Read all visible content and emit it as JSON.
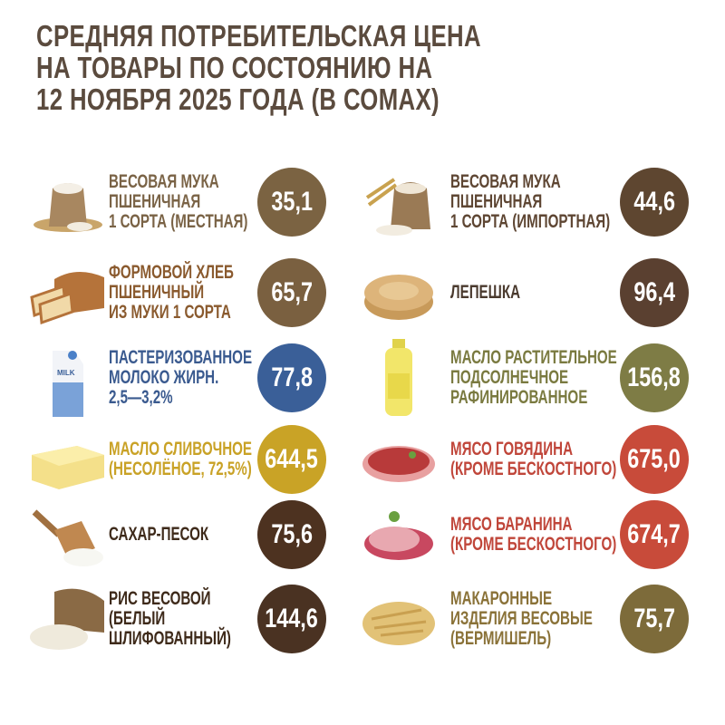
{
  "title": [
    "СРЕДНЯЯ ПОТРЕБИТЕЛЬСКАЯ ЦЕНА",
    "НА ТОВАРЫ ПО СОСТОЯНИЮ НА",
    "12 НОЯБРЯ 2025 ГОДА (В СОМАХ)"
  ],
  "items": [
    {
      "icon": "flour-sack-icon",
      "lines": [
        "ВЕСОВАЯ МУКА",
        "ПШЕНИЧНАЯ",
        "1 СОРТА (МЕСТНАЯ)"
      ],
      "price": "35,1",
      "text_color": "#7a6346",
      "circle_color": "#7b6342"
    },
    {
      "icon": "flour-sack-wheat-icon",
      "lines": [
        "ВЕСОВАЯ МУКА",
        "ПШЕНИЧНАЯ",
        "1 СОРТА (ИМПОРТНАЯ)"
      ],
      "price": "44,6",
      "text_color": "#5e4633",
      "circle_color": "#5e4630"
    },
    {
      "icon": "bread-loaf-icon",
      "lines": [
        "ФОРМОВОЙ ХЛЕБ",
        "ПШЕНИЧНЫЙ",
        "ИЗ МУКИ 1 СОРТА"
      ],
      "price": "65,7",
      "text_color": "#8a5a2e",
      "circle_color": "#7a6040"
    },
    {
      "icon": "flatbread-icon",
      "lines": [
        "ЛЕПЕШКА"
      ],
      "price": "96,4",
      "text_color": "#4a3a2e",
      "circle_color": "#5a4030"
    },
    {
      "icon": "milk-carton-icon",
      "lines": [
        "ПАСТЕРИЗОВАННОЕ",
        "МОЛОКО ЖИРН.",
        "2,5—3,2%"
      ],
      "price": "77,8",
      "text_color": "#3a5a8f",
      "circle_color": "#3a5f98",
      "carton_text": "MILK"
    },
    {
      "icon": "oil-bottle-icon",
      "lines": [
        "МАСЛО РАСТИТЕЛЬНОЕ",
        "ПОДСОЛНЕЧНОЕ",
        "РАФИНИРОВАННОЕ"
      ],
      "price": "156,8",
      "text_color": "#7a7a40",
      "circle_color": "#7e7c45"
    },
    {
      "icon": "butter-icon",
      "lines": [
        "МАСЛО СЛИВОЧНОЕ",
        "(НЕСОЛЁНОЕ, 72,5%)"
      ],
      "price": "644,5",
      "text_color": "#c9a226",
      "circle_color": "#c9a326"
    },
    {
      "icon": "beef-icon",
      "lines": [
        "МЯСО ГОВЯДИНА",
        "(КРОМЕ БЕСКОСТНОГО)"
      ],
      "price": "675,0",
      "text_color": "#c0463a",
      "circle_color": "#c84b3a"
    },
    {
      "icon": "sugar-scoop-icon",
      "lines": [
        "САХАР-ПЕСОК"
      ],
      "price": "75,6",
      "text_color": "#3e2a1a",
      "circle_color": "#4d3220"
    },
    {
      "icon": "mutton-icon",
      "lines": [
        "МЯСО БАРАНИНА",
        "(КРОМЕ БЕСКОСТНОГО)"
      ],
      "price": "674,7",
      "text_color": "#c0463a",
      "circle_color": "#c84b3a"
    },
    {
      "icon": "rice-sack-icon",
      "lines": [
        "РИС ВЕСОВОЙ",
        "(БЕЛЫЙ",
        "ШЛИФОВАННЫЙ)"
      ],
      "price": "144,6",
      "text_color": "#3e2a1a",
      "circle_color": "#4a3222"
    },
    {
      "icon": "pasta-icon",
      "lines": [
        "МАКАРОННЫЕ",
        "ИЗДЕЛИЯ ВЕСОВЫЕ",
        "(ВЕРМИШЕЛЬ)"
      ],
      "price": "75,7",
      "text_color": "#8a7238",
      "circle_color": "#7d6b3a"
    }
  ]
}
